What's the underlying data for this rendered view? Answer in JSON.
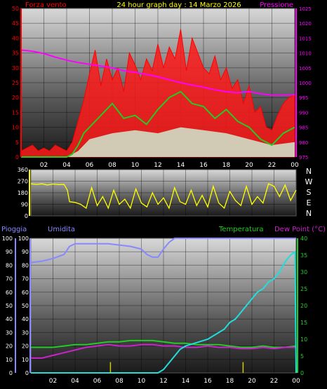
{
  "header": {
    "title": "24 hour graph day : 14 Marzo 2026"
  },
  "colors": {
    "background": "#000000",
    "wind": "#ff1a1a",
    "wind_gust": "#ff0000",
    "wind_avg": "#22cc22",
    "pressure": "#ff00ff",
    "direction": "#ffff00",
    "humidity": "#8888ff",
    "temperature": "#22cc22",
    "dew_point": "#cc22cc",
    "temperature_hi": "#22dddd",
    "rain_axis": "#8888ff",
    "rain_bar": "#cccc00",
    "tick_text": "#ffffff",
    "left_axis_red": "#ff0000"
  },
  "chart_data": [
    {
      "type": "line",
      "name": "wind-pressure",
      "labels": {
        "left": "Forza vento",
        "right": "Pressione"
      },
      "x_ticks": [
        "02",
        "04",
        "06",
        "08",
        "10",
        "12",
        "14",
        "16",
        "18",
        "20",
        "22",
        "00"
      ],
      "y_left": {
        "min": 0,
        "max": 50,
        "ticks": [
          0,
          5,
          10,
          15,
          20,
          25,
          30,
          35,
          40,
          45,
          50
        ]
      },
      "y_right": {
        "min": 975,
        "max": 1025,
        "ticks": [
          975,
          980,
          985,
          990,
          995,
          1000,
          1005,
          1010,
          1015,
          1020,
          1025
        ]
      },
      "x_range": [
        0,
        24
      ],
      "series": {
        "wind_gust": {
          "x": [
            0,
            0.5,
            1,
            1.5,
            2,
            2.5,
            3,
            3.5,
            4,
            4.5,
            5,
            5.5,
            6,
            6.5,
            7,
            7.5,
            8,
            8.5,
            9,
            9.5,
            10,
            10.5,
            11,
            11.5,
            12,
            12.5,
            13,
            13.5,
            14,
            14.5,
            15,
            15.5,
            16,
            16.5,
            17,
            17.5,
            18,
            18.5,
            19,
            19.5,
            20,
            20.5,
            21,
            21.5,
            22,
            22.5,
            23,
            23.5,
            24
          ],
          "y": [
            2,
            3,
            4,
            2,
            3,
            2,
            4,
            3,
            2,
            5,
            12,
            19,
            28,
            36,
            24,
            33,
            26,
            30,
            22,
            35,
            31,
            26,
            33,
            29,
            38,
            30,
            37,
            33,
            43,
            29,
            40,
            35,
            30,
            28,
            34,
            26,
            30,
            23,
            26,
            18,
            24,
            15,
            17,
            10,
            9,
            14,
            18,
            20,
            21
          ]
        },
        "wind_avg": {
          "x": [
            0,
            1,
            2,
            3,
            4,
            4.5,
            5,
            5.5,
            6,
            7,
            8,
            9,
            10,
            11,
            12,
            13,
            14,
            15,
            16,
            17,
            18,
            19,
            20,
            21,
            22,
            23,
            24
          ],
          "y": [
            0,
            0,
            0,
            0,
            0,
            1,
            4,
            8,
            10,
            14,
            18,
            13,
            14,
            11,
            16,
            20,
            22,
            18,
            17,
            13,
            16,
            12,
            10,
            6,
            4,
            8,
            10
          ]
        },
        "wind_floor": {
          "x": [
            0,
            2,
            4,
            5,
            6,
            8,
            10,
            12,
            14,
            16,
            18,
            20,
            22,
            24
          ],
          "y": [
            0,
            0,
            0,
            2,
            6,
            8,
            9,
            8,
            10,
            9,
            8,
            6,
            4,
            5
          ]
        },
        "pressure": {
          "x": [
            0,
            1,
            2,
            3,
            4,
            5,
            6,
            7,
            8,
            9,
            10,
            11,
            12,
            13,
            14,
            15,
            16,
            17,
            18,
            19,
            20,
            21,
            22,
            23,
            24
          ],
          "y": [
            1011,
            1010.6,
            1009.8,
            1008.6,
            1007.6,
            1006.8,
            1006.2,
            1005.6,
            1005,
            1004,
            1003.5,
            1002.8,
            1002,
            1001,
            1000,
            999.2,
            998.5,
            997.6,
            997,
            996.6,
            997,
            996.3,
            995.8,
            995.8,
            995.9
          ]
        }
      }
    },
    {
      "type": "line",
      "name": "wind-direction",
      "y_left": {
        "min": 0,
        "max": 360,
        "ticks": [
          0,
          90,
          180,
          270,
          360
        ]
      },
      "compass": [
        "N",
        "W",
        "S",
        "E",
        "N"
      ],
      "x_range": [
        0,
        24
      ],
      "series": {
        "direction": {
          "x": [
            0,
            0.5,
            1,
            1.5,
            2,
            2.5,
            3,
            3.3,
            3.5,
            4,
            4.5,
            5,
            5.5,
            6,
            6.5,
            7,
            7.5,
            8,
            8.5,
            9,
            9.5,
            10,
            10.5,
            11,
            11.5,
            12,
            12.5,
            13,
            13.5,
            14,
            14.5,
            15,
            15.5,
            16,
            16.5,
            17,
            17.5,
            18,
            18.5,
            19,
            19.5,
            20,
            20.5,
            21,
            21.5,
            22,
            22.5,
            23,
            23.5,
            24
          ],
          "y": [
            250,
            245,
            250,
            240,
            248,
            243,
            245,
            200,
            110,
            105,
            90,
            60,
            220,
            80,
            150,
            60,
            200,
            90,
            130,
            60,
            210,
            100,
            70,
            180,
            90,
            140,
            60,
            220,
            110,
            90,
            200,
            80,
            160,
            70,
            230,
            100,
            60,
            190,
            120,
            80,
            230,
            90,
            150,
            100,
            250,
            230,
            150,
            240,
            120,
            200
          ]
        }
      }
    },
    {
      "type": "line",
      "name": "humidity-temperature-rain",
      "labels": {
        "rain": "Pioggia",
        "humidity": "Umidita",
        "temperature": "Temperatura",
        "dew_point": "Dew Point (°C)"
      },
      "x_ticks": [
        "02",
        "04",
        "06",
        "08",
        "10",
        "12",
        "14",
        "16",
        "18",
        "20",
        "22",
        "00"
      ],
      "y_outer_left": {
        "min": 0,
        "max": 100,
        "ticks": [
          0,
          10,
          20,
          30,
          40,
          50,
          60,
          70,
          80,
          90,
          100
        ]
      },
      "y_inner_left": {
        "min": 0,
        "max": 100,
        "ticks": [
          0,
          10,
          20,
          30,
          40,
          50,
          60,
          70,
          80,
          90,
          100
        ]
      },
      "y_right": {
        "min": 0,
        "max": 40,
        "ticks": [
          0,
          5,
          10,
          15,
          20,
          25,
          30,
          35,
          40
        ]
      },
      "x_range": [
        0,
        24
      ],
      "series": {
        "humidity": {
          "x": [
            0,
            1,
            2,
            3,
            3.5,
            4,
            5,
            6,
            7,
            8,
            9,
            10,
            10.5,
            11,
            11.5,
            12,
            12.5,
            13,
            14,
            16,
            18,
            20,
            22,
            24
          ],
          "y": [
            82,
            83,
            85,
            88,
            94,
            96,
            96,
            96,
            96,
            95,
            94,
            92,
            88,
            86,
            86,
            92,
            97,
            100,
            100,
            100,
            100,
            100,
            100,
            100
          ]
        },
        "temperature": {
          "x": [
            0,
            1,
            2,
            3,
            4,
            5,
            6,
            7,
            8,
            9,
            10,
            11,
            12,
            13,
            14,
            15,
            16,
            17,
            18,
            19,
            20,
            21,
            22,
            23,
            24
          ],
          "y": [
            19,
            19,
            19,
            20,
            21,
            21,
            22,
            23,
            23,
            24,
            24,
            24,
            23,
            22,
            22,
            21,
            21,
            21,
            20,
            19,
            19,
            20,
            19,
            19,
            20
          ]
        },
        "dew_point": {
          "x": [
            0,
            1,
            2,
            3,
            4,
            5,
            6,
            7,
            8,
            9,
            10,
            11,
            12,
            13,
            14,
            15,
            16,
            17,
            18,
            19,
            20,
            21,
            22,
            23,
            24
          ],
          "y": [
            11,
            11,
            13,
            15,
            17,
            19,
            20,
            21,
            20,
            20,
            21,
            21,
            20,
            20,
            19,
            19,
            20,
            19,
            19,
            18,
            18,
            19,
            18,
            19,
            19
          ]
        },
        "temperature_hi": {
          "x": [
            0,
            10,
            11,
            11.5,
            12,
            12.5,
            13,
            13.5,
            14,
            15,
            16,
            16.5,
            17,
            17.5,
            18,
            18.5,
            19,
            19.5,
            20,
            20.5,
            21,
            21.5,
            22,
            22.5,
            23,
            23.5,
            23.9,
            24
          ],
          "y": [
            0,
            0,
            0,
            0,
            1,
            3,
            5,
            7,
            8,
            9,
            10,
            11,
            12,
            13,
            15,
            16,
            18,
            20,
            22,
            24,
            25,
            27,
            28,
            30,
            33,
            35,
            36,
            0
          ]
        },
        "rain": {
          "x": [
            7.2,
            19.2
          ],
          "y": [
            8,
            8
          ]
        }
      }
    }
  ]
}
